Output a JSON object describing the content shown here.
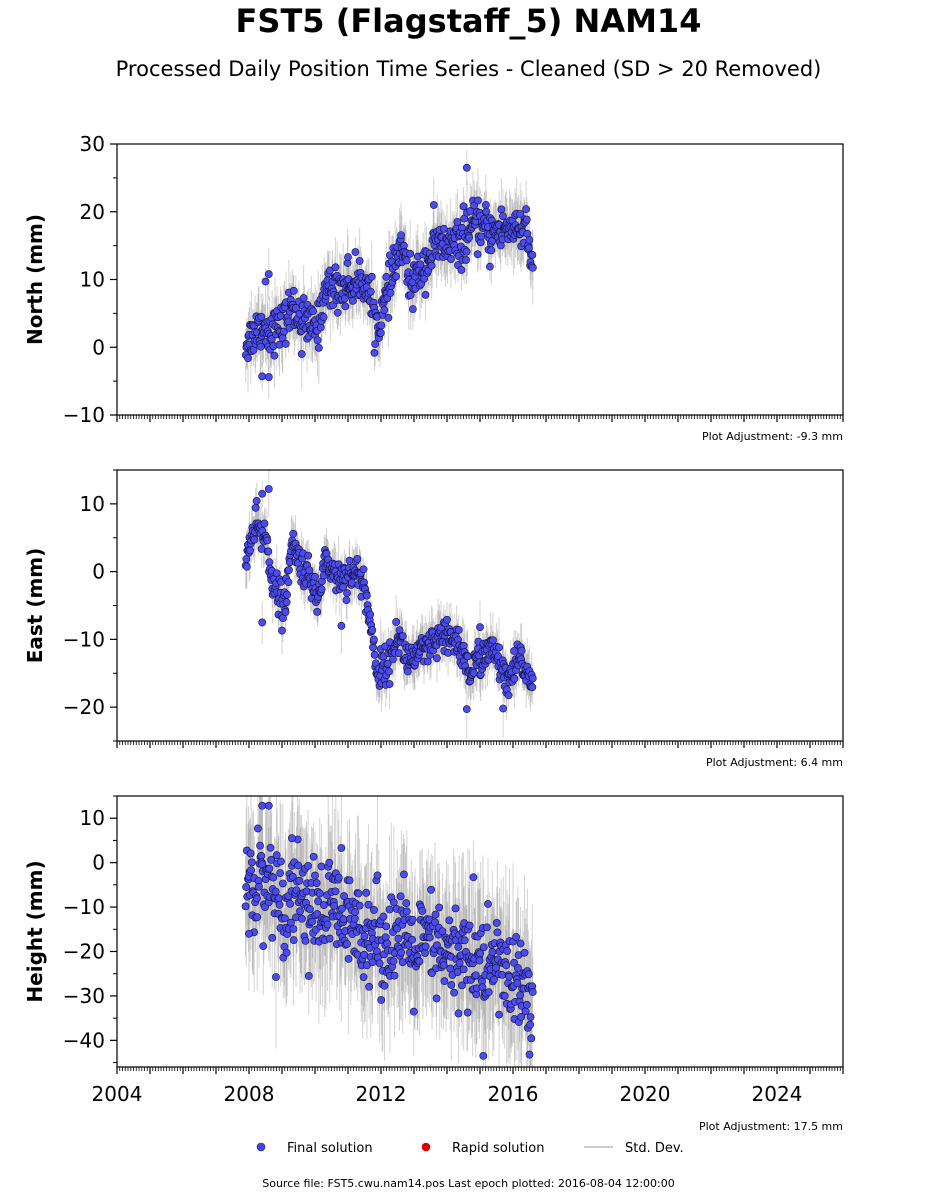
{
  "title": "FST5 (Flagstaff_5) NAM14",
  "subtitle": "Processed Daily Position Time Series - Cleaned (SD > 20 Removed)",
  "footer": "Source file: FST5.cwu.nam14.pos  Last epoch plotted: 2016-08-04 12:00:00",
  "legend": {
    "items": [
      {
        "label": "Final solution",
        "color": "#4444ee",
        "type": "dot"
      },
      {
        "label": "Rapid solution",
        "color": "#dd0000",
        "type": "dot"
      },
      {
        "label": "Std. Dev.",
        "color": "#cccccc",
        "type": "line"
      }
    ]
  },
  "colors": {
    "final": "#4b4bf0",
    "rapid": "#dd0000",
    "stddev": "#808080",
    "dot_edge": "#111133"
  },
  "chart_data": [
    {
      "type": "scatter",
      "panel": "north",
      "ylabel": "North (mm)",
      "ylim": [
        -10,
        30
      ],
      "yticks": [
        -10,
        0,
        10,
        20,
        30
      ],
      "xlim": [
        2004,
        2026
      ],
      "xticks": [
        2004,
        2008,
        2012,
        2016,
        2020,
        2024
      ],
      "adjustment": "Plot Adjustment: -9.3 mm",
      "trend": [
        [
          2007.9,
          0.5
        ],
        [
          2008.3,
          3
        ],
        [
          2008.7,
          2.5
        ],
        [
          2009.0,
          3
        ],
        [
          2009.3,
          6
        ],
        [
          2009.8,
          3
        ],
        [
          2010.1,
          3
        ],
        [
          2010.3,
          8.5
        ],
        [
          2011.0,
          9
        ],
        [
          2011.5,
          10
        ],
        [
          2011.9,
          3
        ],
        [
          2012.2,
          8
        ],
        [
          2012.6,
          15
        ],
        [
          2012.9,
          9
        ],
        [
          2013.3,
          12
        ],
        [
          2013.7,
          15
        ],
        [
          2014.4,
          15
        ],
        [
          2014.8,
          18
        ],
        [
          2015.5,
          17
        ],
        [
          2016.0,
          18
        ],
        [
          2016.4,
          17
        ],
        [
          2016.6,
          11
        ]
      ],
      "spread": 1.6,
      "outliers": [
        [
          2008.6,
          10.8
        ],
        [
          2008.5,
          9.7
        ],
        [
          2008.4,
          -4.3
        ],
        [
          2008.6,
          -4.4
        ],
        [
          2013.6,
          21
        ],
        [
          2014.6,
          26.5
        ],
        [
          2014.5,
          20.8
        ],
        [
          2009.6,
          -1
        ],
        [
          2011.0,
          13.3
        ],
        [
          2012.1,
          5.5
        ],
        [
          2015.3,
          11.9
        ]
      ],
      "series": [
        {
          "name": "Final solution",
          "x_range": [
            2007.9,
            2016.6
          ]
        }
      ]
    },
    {
      "type": "scatter",
      "panel": "east",
      "ylabel": "East (mm)",
      "ylim": [
        -25,
        15
      ],
      "yticks": [
        -20,
        -10,
        0,
        10
      ],
      "xlim": [
        2004,
        2026
      ],
      "xticks": [
        2004,
        2008,
        2012,
        2016,
        2020,
        2024
      ],
      "adjustment": "Plot Adjustment: 6.4 mm",
      "trend": [
        [
          2007.9,
          2
        ],
        [
          2008.2,
          6.5
        ],
        [
          2008.5,
          5
        ],
        [
          2008.8,
          -3
        ],
        [
          2009.1,
          -5
        ],
        [
          2009.3,
          4
        ],
        [
          2009.6,
          1
        ],
        [
          2010.1,
          -4
        ],
        [
          2010.3,
          2
        ],
        [
          2010.7,
          -1
        ],
        [
          2011.2,
          0
        ],
        [
          2011.5,
          -2
        ],
        [
          2011.9,
          -15
        ],
        [
          2012.3,
          -13
        ],
        [
          2012.5,
          -9
        ],
        [
          2012.8,
          -13
        ],
        [
          2013.3,
          -12
        ],
        [
          2013.8,
          -10
        ],
        [
          2014.3,
          -10
        ],
        [
          2014.7,
          -15
        ],
        [
          2015.1,
          -12
        ],
        [
          2015.5,
          -12
        ],
        [
          2015.8,
          -17
        ],
        [
          2016.2,
          -13
        ],
        [
          2016.6,
          -16
        ]
      ],
      "spread": 1.3,
      "outliers": [
        [
          2008.4,
          11.5
        ],
        [
          2008.6,
          12.2
        ],
        [
          2008.4,
          -7.5
        ],
        [
          2009.0,
          -8.7
        ],
        [
          2010.8,
          -8
        ],
        [
          2014.6,
          -20.3
        ],
        [
          2015.7,
          -20.2
        ],
        [
          2015.0,
          -8.2
        ]
      ],
      "series": [
        {
          "name": "Final solution",
          "x_range": [
            2007.9,
            2016.6
          ]
        }
      ]
    },
    {
      "type": "scatter",
      "panel": "height",
      "ylabel": "Height (mm)",
      "ylim": [
        -46,
        15
      ],
      "yticks": [
        -40,
        -30,
        -20,
        -10,
        0,
        10
      ],
      "xlim": [
        2004,
        2026
      ],
      "xticks": [
        2004,
        2008,
        2012,
        2016,
        2020,
        2024
      ],
      "xticklabels": [
        "2004",
        "2008",
        "2012",
        "2016",
        "2020",
        "2024"
      ],
      "adjustment": "Plot Adjustment: 17.5 mm",
      "trend": [
        [
          2007.9,
          -5
        ],
        [
          2008.5,
          -3
        ],
        [
          2009.0,
          -10
        ],
        [
          2009.5,
          -5
        ],
        [
          2010.0,
          -12
        ],
        [
          2010.5,
          -10
        ],
        [
          2011.0,
          -15
        ],
        [
          2011.5,
          -14
        ],
        [
          2012.0,
          -18
        ],
        [
          2012.5,
          -16
        ],
        [
          2013.0,
          -20
        ],
        [
          2013.5,
          -18
        ],
        [
          2014.0,
          -22
        ],
        [
          2014.5,
          -20
        ],
        [
          2015.0,
          -24
        ],
        [
          2015.5,
          -22
        ],
        [
          2016.0,
          -27
        ],
        [
          2016.6,
          -30
        ]
      ],
      "spread": 5.5,
      "outliers": [
        [
          2008.4,
          12.8
        ],
        [
          2008.6,
          12.8
        ],
        [
          2009.3,
          5.5
        ],
        [
          2010.8,
          3.3
        ],
        [
          2014.8,
          -3.3
        ],
        [
          2015.1,
          -43.5
        ],
        [
          2016.5,
          -43.2
        ],
        [
          2008.0,
          -16
        ]
      ],
      "series": [
        {
          "name": "Final solution",
          "x_range": [
            2007.9,
            2016.6
          ]
        }
      ]
    }
  ]
}
